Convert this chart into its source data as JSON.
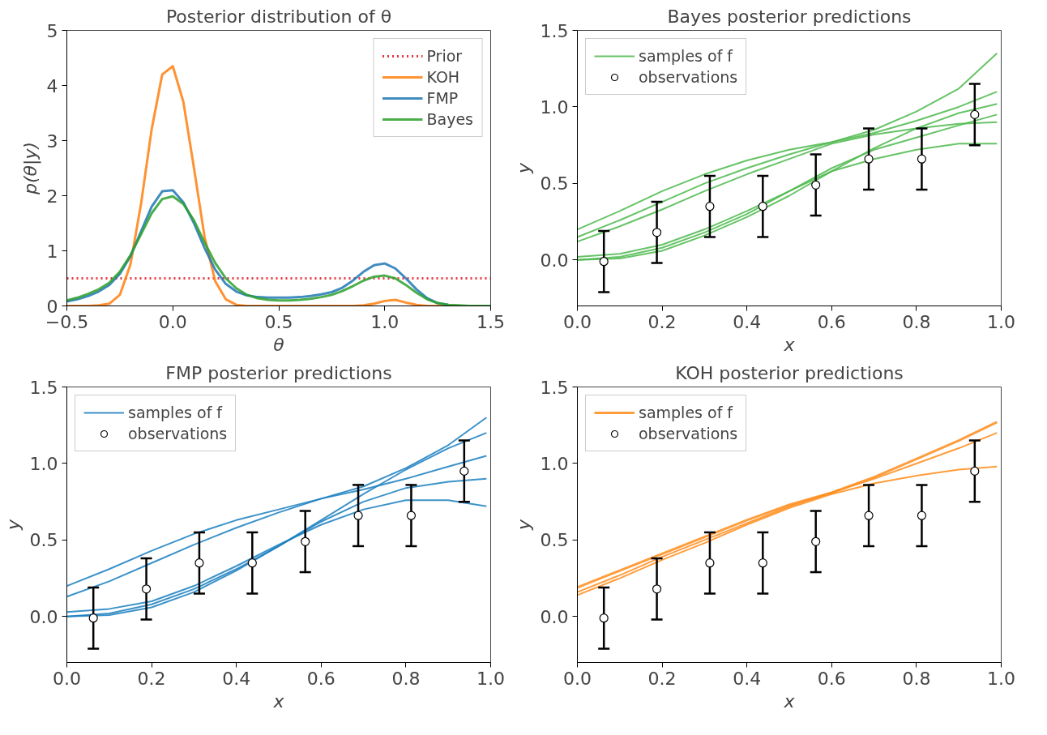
{
  "chart_data": [
    {
      "type": "line",
      "title": "Posterior distribution of θ",
      "xlabel": "θ",
      "ylabel": "p(θ|y)",
      "legend": "top right",
      "grid": false,
      "x": [
        -0.5,
        -0.45,
        -0.4,
        -0.35,
        -0.3,
        -0.25,
        -0.2,
        -0.15,
        -0.1,
        -0.05,
        0,
        0.05,
        0.1,
        0.15,
        0.2,
        0.25,
        0.3,
        0.35,
        0.4,
        0.45,
        0.5,
        0.55,
        0.6,
        0.65,
        0.7,
        0.75,
        0.8,
        0.85,
        0.9,
        0.95,
        1.0,
        1.05,
        1.1,
        1.15,
        1.2,
        1.25,
        1.3,
        1.35,
        1.4,
        1.45,
        1.5
      ],
      "xlim": [
        -0.5,
        1.5
      ],
      "xticks": [
        {
          "value": -0.5,
          "label": "−0.5"
        },
        {
          "value": 0,
          "label": "0.0"
        },
        {
          "value": 0.5,
          "label": "0.5"
        },
        {
          "value": 1,
          "label": "1.0"
        },
        {
          "value": 1.5,
          "label": "1.5"
        }
      ],
      "ylim": [
        0,
        5
      ],
      "yticks": [
        0,
        1,
        2,
        3,
        4,
        5
      ],
      "series": [
        {
          "name": "Prior",
          "color": "#e8101d",
          "line_style": "dotted",
          "values": [
            0.5,
            0.5,
            0.5,
            0.5,
            0.5,
            0.5,
            0.5,
            0.5,
            0.5,
            0.5,
            0.5,
            0.5,
            0.5,
            0.5,
            0.5,
            0.5,
            0.5,
            0.5,
            0.5,
            0.5,
            0.5,
            0.5,
            0.5,
            0.5,
            0.5,
            0.5,
            0.5,
            0.5,
            0.5,
            0.5,
            0.5,
            0.5,
            0.5,
            0.5,
            0.5,
            0.5,
            0.5,
            0.5,
            0.5,
            0.5,
            0.5
          ]
        },
        {
          "name": "KOH",
          "color": "#ff7f0e",
          "values": [
            0,
            0,
            0,
            0.01,
            0.04,
            0.2,
            0.75,
            1.85,
            3.2,
            4.2,
            4.35,
            3.7,
            2.5,
            1.25,
            0.45,
            0.12,
            0.02,
            0,
            0,
            0,
            0,
            0,
            0,
            0,
            0,
            0,
            0,
            0,
            0.01,
            0.04,
            0.09,
            0.11,
            0.06,
            0.02,
            0,
            0,
            0,
            0,
            null,
            null,
            null
          ]
        },
        {
          "name": "FMP",
          "color": "#1f77b4",
          "values": [
            0.08,
            0.12,
            0.18,
            0.26,
            0.38,
            0.58,
            0.9,
            1.35,
            1.8,
            2.08,
            2.1,
            1.88,
            1.5,
            1.05,
            0.66,
            0.4,
            0.26,
            0.19,
            0.16,
            0.15,
            0.15,
            0.15,
            0.16,
            0.18,
            0.21,
            0.25,
            0.33,
            0.46,
            0.62,
            0.74,
            0.77,
            0.68,
            0.5,
            0.3,
            0.14,
            0.05,
            0.02,
            null,
            null,
            null,
            null
          ]
        },
        {
          "name": "Bayes",
          "color": "#2ca02c",
          "values": [
            0.1,
            0.15,
            0.22,
            0.3,
            0.42,
            0.62,
            0.92,
            1.3,
            1.68,
            1.94,
            1.99,
            1.85,
            1.55,
            1.15,
            0.78,
            0.5,
            0.32,
            0.2,
            0.14,
            0.11,
            0.1,
            0.1,
            0.11,
            0.13,
            0.16,
            0.2,
            0.27,
            0.36,
            0.46,
            0.53,
            0.55,
            0.5,
            0.38,
            0.24,
            0.12,
            0.05,
            0.02,
            0.01,
            0,
            0,
            0
          ]
        }
      ]
    },
    {
      "type": "line",
      "title": "Bayes posterior predictions",
      "xlabel": "x",
      "ylabel": "y",
      "legend": "top left",
      "grid": false,
      "x": [
        0,
        0.1,
        0.2,
        0.3,
        0.4,
        0.5,
        0.6,
        0.7,
        0.8,
        0.9,
        0.99
      ],
      "xlim": [
        0,
        1
      ],
      "xticks": [
        {
          "value": 0,
          "label": "0.0"
        },
        {
          "value": 0.2,
          "label": "0.2"
        },
        {
          "value": 0.4,
          "label": "0.4"
        },
        {
          "value": 0.6,
          "label": "0.6"
        },
        {
          "value": 0.8,
          "label": "0.8"
        },
        {
          "value": 1,
          "label": "1.0"
        }
      ],
      "ylim": [
        -0.3,
        1.5
      ],
      "yticks": [
        {
          "value": 0,
          "label": "0.0"
        },
        {
          "value": 0.5,
          "label": "0.5"
        },
        {
          "value": 1,
          "label": "1.0"
        },
        {
          "value": 1.5,
          "label": "1.5"
        }
      ],
      "series": [
        {
          "name": "samples of f",
          "color": "#4cb84c",
          "values": [
            0.2,
            0.32,
            0.45,
            0.56,
            0.65,
            0.72,
            0.77,
            0.85,
            0.97,
            1.12,
            1.35
          ]
        },
        {
          "color": "#4cb84c",
          "values": [
            0.15,
            0.26,
            0.38,
            0.5,
            0.6,
            0.69,
            0.77,
            0.83,
            0.91,
            1.0,
            1.1
          ]
        },
        {
          "color": "#4cb84c",
          "values": [
            0.12,
            0.22,
            0.33,
            0.45,
            0.56,
            0.66,
            0.76,
            0.82,
            0.86,
            0.89,
            0.9
          ]
        },
        {
          "color": "#4cb84c",
          "values": [
            0.0,
            0.02,
            0.08,
            0.18,
            0.3,
            0.45,
            0.6,
            0.72,
            0.8,
            0.88,
            0.95
          ]
        },
        {
          "color": "#4cb84c",
          "values": [
            0.02,
            0.04,
            0.1,
            0.2,
            0.32,
            0.45,
            0.58,
            0.66,
            0.72,
            0.76,
            0.76
          ]
        },
        {
          "color": "#4cb84c",
          "values": [
            0.0,
            0.01,
            0.06,
            0.16,
            0.28,
            0.42,
            0.58,
            0.73,
            0.86,
            0.96,
            1.02
          ]
        },
        {
          "name": "observations",
          "type": "scatter",
          "marker": "circle",
          "color": "#ffffff",
          "x": [
            0.0625,
            0.1875,
            0.3125,
            0.4375,
            0.5625,
            0.6875,
            0.8125,
            0.9375
          ],
          "values": [
            -0.01,
            0.18,
            0.35,
            0.35,
            0.49,
            0.66,
            0.66,
            0.95
          ],
          "errors": [
            0.2,
            0.2,
            0.2,
            0.2,
            0.2,
            0.2,
            0.2,
            0.2
          ]
        }
      ]
    },
    {
      "type": "line",
      "title": "FMP posterior predictions",
      "xlabel": "x",
      "ylabel": "y",
      "legend": "top left",
      "grid": false,
      "x": [
        0,
        0.1,
        0.2,
        0.3,
        0.4,
        0.5,
        0.6,
        0.7,
        0.8,
        0.9,
        0.99
      ],
      "xlim": [
        0,
        1
      ],
      "xticks": [
        {
          "value": 0,
          "label": "0.0"
        },
        {
          "value": 0.2,
          "label": "0.2"
        },
        {
          "value": 0.4,
          "label": "0.4"
        },
        {
          "value": 0.6,
          "label": "0.6"
        },
        {
          "value": 0.8,
          "label": "0.8"
        },
        {
          "value": 1,
          "label": "1.0"
        }
      ],
      "ylim": [
        -0.3,
        1.5
      ],
      "yticks": [
        {
          "value": 0,
          "label": "0.0"
        },
        {
          "value": 0.5,
          "label": "0.5"
        },
        {
          "value": 1,
          "label": "1.0"
        },
        {
          "value": 1.5,
          "label": "1.5"
        }
      ],
      "series": [
        {
          "name": "samples of f",
          "color": "#1a7fbf",
          "values": [
            0.2,
            0.31,
            0.43,
            0.54,
            0.63,
            0.7,
            0.77,
            0.85,
            0.97,
            1.12,
            1.3
          ]
        },
        {
          "color": "#1a7fbf",
          "values": [
            0.13,
            0.23,
            0.35,
            0.47,
            0.58,
            0.68,
            0.77,
            0.83,
            0.9,
            0.98,
            1.05
          ]
        },
        {
          "color": "#1a7fbf",
          "values": [
            0.03,
            0.05,
            0.1,
            0.2,
            0.33,
            0.47,
            0.6,
            0.7,
            0.76,
            0.76,
            0.72
          ]
        },
        {
          "color": "#1a7fbf",
          "values": [
            0.0,
            0.02,
            0.08,
            0.18,
            0.31,
            0.46,
            0.62,
            0.75,
            0.84,
            0.88,
            0.9
          ]
        },
        {
          "color": "#1a7fbf",
          "values": [
            0.0,
            0.01,
            0.06,
            0.16,
            0.3,
            0.46,
            0.63,
            0.8,
            0.96,
            1.1,
            1.2
          ]
        },
        {
          "name": "observations",
          "type": "scatter",
          "marker": "circle",
          "color": "#ffffff",
          "x": [
            0.0625,
            0.1875,
            0.3125,
            0.4375,
            0.5625,
            0.6875,
            0.8125,
            0.9375
          ],
          "values": [
            -0.01,
            0.18,
            0.35,
            0.35,
            0.49,
            0.66,
            0.66,
            0.95
          ],
          "errors": [
            0.2,
            0.2,
            0.2,
            0.2,
            0.2,
            0.2,
            0.2,
            0.2
          ]
        }
      ]
    },
    {
      "type": "line",
      "title": "KOH posterior predictions",
      "xlabel": "x",
      "ylabel": "y",
      "legend": "top left",
      "grid": false,
      "x": [
        0,
        0.1,
        0.2,
        0.3,
        0.4,
        0.5,
        0.6,
        0.7,
        0.8,
        0.9,
        0.99
      ],
      "xlim": [
        0,
        1
      ],
      "xticks": [
        {
          "value": 0,
          "label": "0.0"
        },
        {
          "value": 0.2,
          "label": "0.2"
        },
        {
          "value": 0.4,
          "label": "0.4"
        },
        {
          "value": 0.6,
          "label": "0.6"
        },
        {
          "value": 0.8,
          "label": "0.8"
        },
        {
          "value": 1,
          "label": "1.0"
        }
      ],
      "ylim": [
        -0.3,
        1.5
      ],
      "yticks": [
        {
          "value": 0,
          "label": "0.0"
        },
        {
          "value": 0.5,
          "label": "0.5"
        },
        {
          "value": 1,
          "label": "1.0"
        },
        {
          "value": 1.5,
          "label": "1.5"
        }
      ],
      "series": [
        {
          "name": "samples of f",
          "color": "#ff8c1a",
          "values": [
            0.19,
            0.3,
            0.41,
            0.52,
            0.63,
            0.73,
            0.81,
            0.91,
            1.03,
            1.15,
            1.27
          ]
        },
        {
          "color": "#ff8c1a",
          "values": [
            0.16,
            0.27,
            0.39,
            0.5,
            0.61,
            0.72,
            0.81,
            0.9,
            1.0,
            1.1,
            1.2
          ]
        },
        {
          "color": "#ff8c1a",
          "values": [
            0.14,
            0.25,
            0.37,
            0.48,
            0.6,
            0.71,
            0.8,
            0.87,
            0.92,
            0.96,
            0.98
          ]
        },
        {
          "name": "observations",
          "type": "scatter",
          "marker": "circle",
          "color": "#ffffff",
          "x": [
            0.0625,
            0.1875,
            0.3125,
            0.4375,
            0.5625,
            0.6875,
            0.8125,
            0.9375
          ],
          "values": [
            -0.01,
            0.18,
            0.35,
            0.35,
            0.49,
            0.66,
            0.66,
            0.95
          ],
          "errors": [
            0.2,
            0.2,
            0.2,
            0.2,
            0.2,
            0.2,
            0.2,
            0.2
          ]
        }
      ]
    }
  ]
}
